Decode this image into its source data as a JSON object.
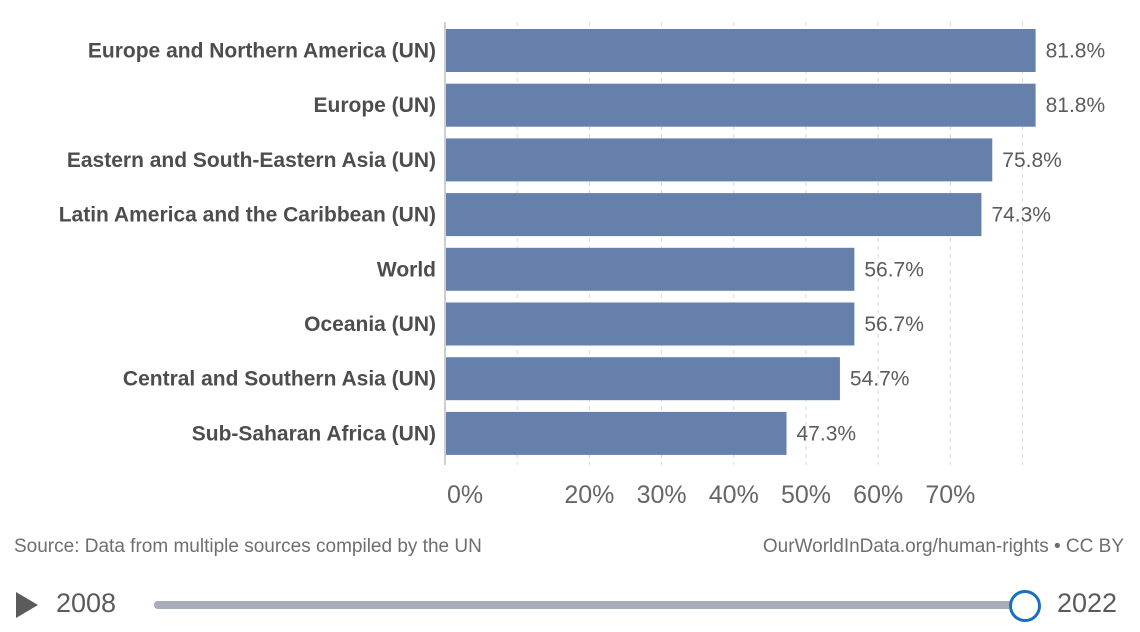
{
  "chart_data": {
    "type": "bar",
    "orientation": "horizontal",
    "categories": [
      "Europe and Northern America (UN)",
      "Europe (UN)",
      "Eastern and South-Eastern Asia (UN)",
      "Latin America and the Caribbean (UN)",
      "World",
      "Oceania (UN)",
      "Central and Southern Asia (UN)",
      "Sub-Saharan Africa (UN)"
    ],
    "values": [
      81.8,
      81.8,
      75.8,
      74.3,
      56.7,
      56.7,
      54.7,
      47.3
    ],
    "value_labels": [
      "81.8%",
      "81.8%",
      "75.8%",
      "74.3%",
      "56.7%",
      "56.7%",
      "54.7%",
      "47.3%"
    ],
    "x_ticks": [
      0,
      20,
      30,
      40,
      50,
      60,
      70
    ],
    "x_tick_labels": [
      "0%",
      "20%",
      "30%",
      "40%",
      "50%",
      "60%",
      "70%"
    ],
    "gridlines": [
      10,
      20,
      30,
      40,
      50,
      60,
      70,
      80
    ],
    "xlim": [
      0,
      82
    ],
    "grid": true,
    "bar_color": "#6580ab"
  },
  "footer": {
    "source": "Source: Data from multiple sources compiled by the UN",
    "credit": "OurWorldInData.org/human-rights • CC BY"
  },
  "timeline": {
    "start_year": "2008",
    "end_year": "2022",
    "progress": 1.0,
    "play_icon": "play-icon"
  }
}
